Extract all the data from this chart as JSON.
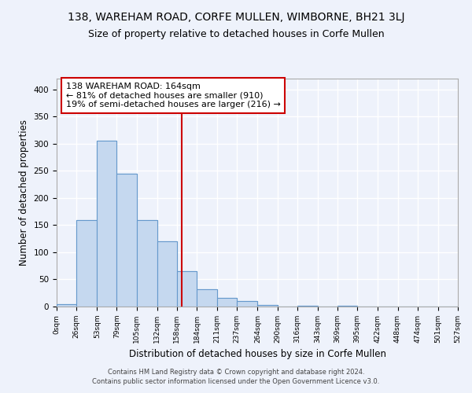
{
  "title": "138, WAREHAM ROAD, CORFE MULLEN, WIMBORNE, BH21 3LJ",
  "subtitle": "Size of property relative to detached houses in Corfe Mullen",
  "xlabel": "Distribution of detached houses by size in Corfe Mullen",
  "ylabel": "Number of detached properties",
  "footnote1": "Contains HM Land Registry data © Crown copyright and database right 2024.",
  "footnote2": "Contains public sector information licensed under the Open Government Licence v3.0.",
  "bin_labels": [
    "0sqm",
    "26sqm",
    "53sqm",
    "79sqm",
    "105sqm",
    "132sqm",
    "158sqm",
    "184sqm",
    "211sqm",
    "237sqm",
    "264sqm",
    "290sqm",
    "316sqm",
    "343sqm",
    "369sqm",
    "395sqm",
    "422sqm",
    "448sqm",
    "474sqm",
    "501sqm",
    "527sqm"
  ],
  "bar_values": [
    5,
    160,
    305,
    245,
    160,
    120,
    65,
    32,
    16,
    10,
    3,
    0,
    2,
    0,
    2,
    0,
    0,
    0,
    0,
    0
  ],
  "bar_color": "#c5d8ef",
  "bar_edge_color": "#6699cc",
  "bin_edges": [
    0,
    26,
    53,
    79,
    105,
    132,
    158,
    184,
    211,
    237,
    264,
    290,
    316,
    343,
    369,
    395,
    422,
    448,
    474,
    501,
    527
  ],
  "property_size": 164,
  "vline_color": "#cc0000",
  "annotation_line1": "138 WAREHAM ROAD: 164sqm",
  "annotation_line2": "← 81% of detached houses are smaller (910)",
  "annotation_line3": "19% of semi-detached houses are larger (216) →",
  "annotation_box_color": "#ffffff",
  "annotation_box_edgecolor": "#cc0000",
  "ylim": [
    0,
    420
  ],
  "background_color": "#eef2fb",
  "grid_color": "#ffffff",
  "title_fontsize": 10,
  "subtitle_fontsize": 9,
  "xlabel_fontsize": 8.5,
  "ylabel_fontsize": 8.5,
  "annot_fontsize": 8
}
